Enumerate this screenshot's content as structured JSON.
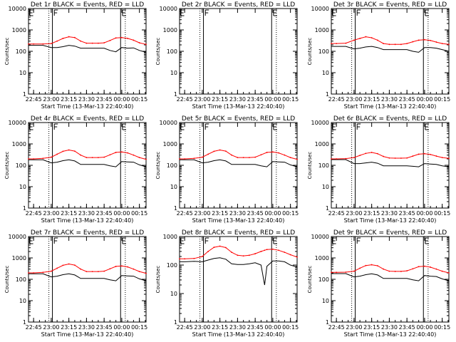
{
  "figure": {
    "x_tick_labels": [
      "22:45",
      "23:00",
      "23:15",
      "23:30",
      "23:45",
      "00:00",
      "00:15"
    ],
    "xlabel": "Start Time (13-Mar-13 22:40:40)",
    "ylabel": "Counts/sec",
    "colors": {
      "events": "#000000",
      "lld": "#ff0000",
      "axes": "#000000"
    }
  },
  "chart_data": [
    {
      "type": "line",
      "title": "Det 1r BLACK = Events, RED = LLD",
      "detector": "1r",
      "ylim": [
        1,
        10000
      ],
      "yscale": "log",
      "y_tick_labels": [
        "1",
        "10",
        "100",
        "1000",
        "10000"
      ],
      "x": [
        "22:40",
        "22:45",
        "22:53",
        "23:00",
        "23:05",
        "23:10",
        "23:15",
        "23:20",
        "23:25",
        "23:30",
        "23:35",
        "23:40",
        "23:45",
        "23:50",
        "23:55",
        "00:00",
        "00:05",
        "00:10",
        "00:15",
        "00:20"
      ],
      "series": [
        {
          "name": "Events",
          "values": [
            190,
            190,
            190,
            150,
            150,
            165,
            190,
            175,
            140,
            140,
            140,
            140,
            140,
            110,
            95,
            150,
            140,
            145,
            110,
            90
          ]
        },
        {
          "name": "LLD",
          "values": [
            220,
            220,
            220,
            230,
            300,
            400,
            480,
            440,
            300,
            240,
            240,
            240,
            250,
            320,
            420,
            440,
            400,
            330,
            250,
            210
          ]
        }
      ]
    },
    {
      "type": "line",
      "title": "Det 2r BLACK = Events, RED = LLD",
      "detector": "2r",
      "ylim": [
        1,
        10000
      ],
      "yscale": "log",
      "y_tick_labels": [
        "1",
        "10",
        "100",
        "1000",
        "10000"
      ],
      "x": [],
      "series": []
    },
    {
      "type": "line",
      "title": "Det 3r BLACK = Events, RED = LLD",
      "detector": "3r",
      "ylim": [
        1,
        10000
      ],
      "yscale": "log",
      "y_tick_labels": [
        "1",
        "10",
        "100",
        "1000",
        "10000"
      ],
      "x": [
        "22:40",
        "22:45",
        "22:53",
        "23:00",
        "23:05",
        "23:10",
        "23:15",
        "23:20",
        "23:25",
        "23:30",
        "23:35",
        "23:40",
        "23:45",
        "23:50",
        "23:55",
        "00:00",
        "00:05",
        "00:10",
        "00:15",
        "00:20"
      ],
      "series": [
        {
          "name": "Events",
          "values": [
            170,
            170,
            170,
            130,
            140,
            160,
            170,
            150,
            120,
            120,
            120,
            120,
            120,
            100,
            90,
            150,
            150,
            140,
            120,
            100
          ]
        },
        {
          "name": "LLD",
          "values": [
            230,
            230,
            240,
            330,
            400,
            480,
            430,
            330,
            230,
            210,
            210,
            210,
            230,
            280,
            330,
            350,
            320,
            270,
            230,
            210
          ]
        }
      ]
    },
    {
      "type": "line",
      "title": "Det 4r BLACK = Events, RED = LLD",
      "detector": "4r",
      "ylim": [
        1,
        10000
      ],
      "yscale": "log",
      "y_tick_labels": [
        "1",
        "10",
        "100",
        "1000",
        "10000"
      ],
      "x": [
        "22:40",
        "22:45",
        "22:53",
        "23:00",
        "23:05",
        "23:10",
        "23:15",
        "23:20",
        "23:25",
        "23:30",
        "23:35",
        "23:40",
        "23:45",
        "23:50",
        "23:55",
        "00:00",
        "00:05",
        "00:10",
        "00:15",
        "00:20"
      ],
      "series": [
        {
          "name": "Events",
          "values": [
            180,
            180,
            180,
            130,
            140,
            165,
            180,
            160,
            110,
            110,
            110,
            110,
            110,
            95,
            85,
            150,
            145,
            140,
            105,
            85
          ]
        },
        {
          "name": "LLD",
          "values": [
            200,
            200,
            210,
            240,
            330,
            450,
            520,
            460,
            300,
            230,
            230,
            230,
            240,
            310,
            400,
            420,
            380,
            300,
            230,
            190
          ]
        }
      ]
    },
    {
      "type": "line",
      "title": "Det 5r BLACK = Events, RED = LLD",
      "detector": "5r",
      "ylim": [
        1,
        10000
      ],
      "yscale": "log",
      "y_tick_labels": [
        "1",
        "10",
        "100",
        "1000",
        "10000"
      ],
      "x": [
        "22:40",
        "22:45",
        "22:53",
        "23:00",
        "23:05",
        "23:10",
        "23:15",
        "23:20",
        "23:25",
        "23:30",
        "23:35",
        "23:40",
        "23:45",
        "23:50",
        "23:55",
        "00:00",
        "00:05",
        "00:10",
        "00:15",
        "00:20"
      ],
      "series": [
        {
          "name": "Events",
          "values": [
            180,
            180,
            180,
            130,
            140,
            165,
            180,
            160,
            110,
            110,
            110,
            110,
            110,
            95,
            85,
            150,
            145,
            140,
            105,
            85
          ]
        },
        {
          "name": "LLD",
          "values": [
            200,
            200,
            210,
            240,
            330,
            450,
            520,
            460,
            300,
            230,
            230,
            230,
            240,
            310,
            400,
            420,
            380,
            300,
            230,
            190
          ]
        }
      ]
    },
    {
      "type": "line",
      "title": "Det 6r BLACK = Events, RED = LLD",
      "detector": "6r",
      "ylim": [
        1,
        10000
      ],
      "yscale": "log",
      "y_tick_labels": [
        "1",
        "10",
        "100",
        "1000",
        "10000"
      ],
      "x": [
        "22:40",
        "22:45",
        "22:53",
        "23:00",
        "23:05",
        "23:10",
        "23:15",
        "23:20",
        "23:25",
        "23:30",
        "23:35",
        "23:40",
        "23:45",
        "23:50",
        "23:55",
        "00:00",
        "00:05",
        "00:10",
        "00:15",
        "00:20"
      ],
      "series": [
        {
          "name": "Events",
          "values": [
            185,
            185,
            185,
            120,
            120,
            130,
            140,
            125,
            95,
            95,
            95,
            95,
            95,
            90,
            85,
            120,
            115,
            110,
            95,
            85
          ]
        },
        {
          "name": "LLD",
          "values": [
            200,
            200,
            205,
            230,
            290,
            360,
            400,
            350,
            260,
            220,
            215,
            215,
            220,
            270,
            330,
            350,
            320,
            270,
            230,
            210
          ]
        }
      ]
    },
    {
      "type": "line",
      "title": "Det 7r BLACK = Events, RED = LLD",
      "detector": "7r",
      "ylim": [
        1,
        10000
      ],
      "yscale": "log",
      "y_tick_labels": [
        "1",
        "10",
        "100",
        "1000",
        "10000"
      ],
      "x": [
        "22:40",
        "22:45",
        "22:53",
        "23:00",
        "23:05",
        "23:10",
        "23:15",
        "23:20",
        "23:25",
        "23:30",
        "23:35",
        "23:40",
        "23:45",
        "23:50",
        "23:55",
        "00:00",
        "00:05",
        "00:10",
        "00:15",
        "00:20"
      ],
      "series": [
        {
          "name": "Events",
          "values": [
            180,
            180,
            180,
            130,
            140,
            165,
            180,
            160,
            110,
            110,
            110,
            110,
            110,
            95,
            85,
            150,
            145,
            140,
            105,
            85
          ]
        },
        {
          "name": "LLD",
          "values": [
            200,
            200,
            210,
            240,
            330,
            450,
            520,
            460,
            300,
            230,
            230,
            230,
            240,
            310,
            400,
            420,
            380,
            300,
            230,
            190
          ]
        }
      ]
    },
    {
      "type": "line",
      "title": "Det 8r BLACK = Events, RED = LLD",
      "detector": "8r",
      "ylim": [
        1,
        1000
      ],
      "yscale": "log",
      "y_tick_labels": [
        "1",
        "10",
        "100",
        "1000"
      ],
      "x": [
        "22:40",
        "22:45",
        "22:53",
        "23:00",
        "23:05",
        "23:10",
        "23:15",
        "23:20",
        "23:25",
        "23:30",
        "23:35",
        "23:40",
        "23:45",
        "23:50",
        "23:53",
        "23:55",
        "00:00",
        "00:05",
        "00:10",
        "00:15",
        "00:20"
      ],
      "series": [
        {
          "name": "Events",
          "values": [
            130,
            130,
            135,
            130,
            150,
            170,
            180,
            160,
            110,
            105,
            105,
            110,
            120,
            100,
            20,
            90,
            140,
            140,
            130,
            100,
            85
          ]
        },
        {
          "name": "LLD",
          "values": [
            165,
            165,
            170,
            200,
            300,
            420,
            460,
            410,
            280,
            220,
            210,
            220,
            250,
            300,
            330,
            350,
            360,
            330,
            280,
            230,
            190
          ]
        }
      ]
    },
    {
      "type": "line",
      "title": "Det 9r BLACK = Events, RED = LLD",
      "detector": "9r",
      "ylim": [
        1,
        10000
      ],
      "yscale": "log",
      "y_tick_labels": [
        "1",
        "10",
        "100",
        "1000",
        "10000"
      ],
      "x": [
        "22:40",
        "22:45",
        "22:53",
        "23:00",
        "23:05",
        "23:10",
        "23:15",
        "23:20",
        "23:25",
        "23:30",
        "23:35",
        "23:40",
        "23:45",
        "23:50",
        "23:55",
        "00:00",
        "00:05",
        "00:10",
        "00:15",
        "00:20"
      ],
      "series": [
        {
          "name": "Events",
          "values": [
            185,
            185,
            185,
            130,
            140,
            165,
            180,
            160,
            110,
            110,
            110,
            110,
            110,
            95,
            85,
            150,
            140,
            135,
            105,
            85
          ]
        },
        {
          "name": "LLD",
          "values": [
            210,
            210,
            215,
            240,
            330,
            440,
            480,
            430,
            300,
            240,
            235,
            235,
            250,
            310,
            390,
            410,
            370,
            300,
            240,
            200
          ]
        }
      ]
    }
  ]
}
